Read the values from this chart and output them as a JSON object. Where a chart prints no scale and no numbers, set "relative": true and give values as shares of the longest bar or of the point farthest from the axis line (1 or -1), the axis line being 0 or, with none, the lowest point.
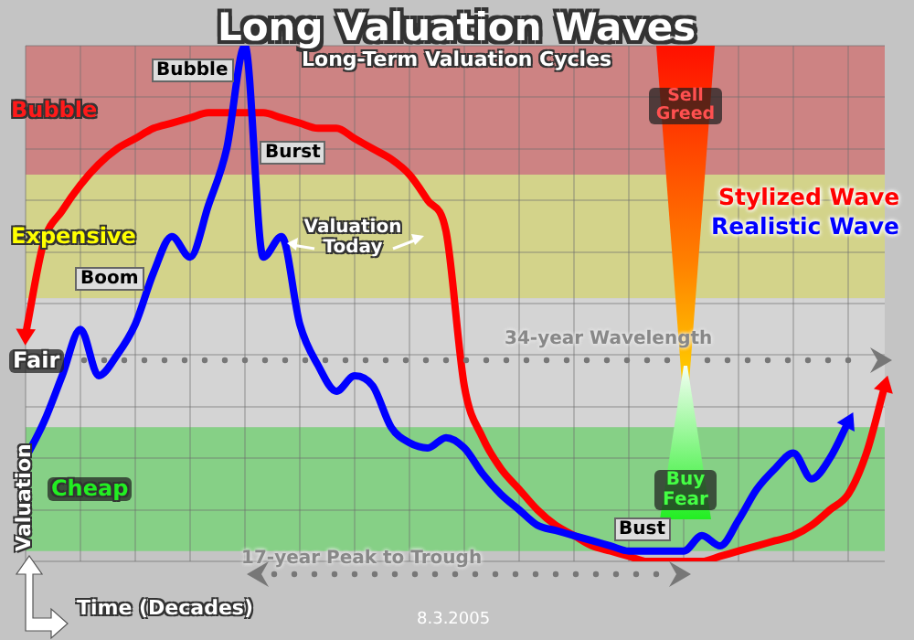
{
  "chart_data": {
    "type": "line",
    "title": "Long Valuation Waves",
    "subtitle": "Long-Term Valuation Cycles",
    "xlabel": "Time (Decades)",
    "ylabel": "Valuation",
    "relative": true,
    "grid": true,
    "legend": "right",
    "categories": [
      null,
      null,
      null,
      null,
      null,
      null,
      null,
      null,
      null,
      null,
      null,
      null,
      null,
      null,
      null,
      null,
      null,
      null,
      null,
      null,
      null,
      null,
      null,
      null,
      null,
      null,
      null,
      null,
      null,
      null,
      null,
      null,
      null,
      null,
      null,
      null,
      null,
      null,
      null,
      null,
      null,
      null,
      null,
      null,
      null,
      null,
      null,
      null
    ],
    "series": [
      {
        "name": "Stylized Wave",
        "color": "#ff0000",
        "values": [
          0.44,
          0.62,
          0.68,
          0.73,
          0.77,
          0.8,
          0.82,
          0.84,
          0.85,
          0.86,
          0.87,
          0.87,
          0.87,
          0.87,
          0.86,
          0.85,
          0.84,
          0.84,
          0.82,
          0.8,
          0.78,
          0.75,
          0.7,
          0.64,
          0.34,
          0.24,
          0.18,
          0.14,
          0.1,
          0.07,
          0.05,
          0.03,
          0.02,
          0.01,
          0.0,
          0.0,
          0.0,
          0.0,
          0.01,
          0.02,
          0.03,
          0.04,
          0.05,
          0.07,
          0.1,
          0.13,
          0.21,
          0.34
        ]
      },
      {
        "name": "Realistic Wave",
        "color": "#0000ff",
        "values": [
          0.2,
          0.27,
          0.36,
          0.45,
          0.36,
          0.4,
          0.46,
          0.56,
          0.63,
          0.59,
          0.69,
          0.8,
          1.0,
          0.59,
          0.63,
          0.46,
          0.38,
          0.33,
          0.36,
          0.34,
          0.26,
          0.23,
          0.22,
          0.24,
          0.22,
          0.17,
          0.13,
          0.1,
          0.07,
          0.06,
          0.05,
          0.04,
          0.03,
          0.02,
          0.02,
          0.02,
          0.02,
          0.05,
          0.03,
          0.08,
          0.14,
          0.18,
          0.21,
          0.16,
          0.2,
          0.27,
          null,
          null
        ]
      }
    ],
    "bands": [
      {
        "axis": "y",
        "from": 0.75,
        "to": 1.0,
        "label": "Bubble",
        "color": "#cd8383"
      },
      {
        "axis": "y",
        "from": 0.51,
        "to": 0.75,
        "label": "Expensive",
        "color": "#d3d38a"
      },
      {
        "axis": "y",
        "from": 0.26,
        "to": 0.51,
        "color": "#d4d4d4"
      },
      {
        "axis": "y",
        "from": 0.02,
        "to": 0.26,
        "label": "Cheap",
        "color": "#86d086"
      }
    ],
    "ref_lines": [
      {
        "axis": "y",
        "value": 0.39,
        "label": "Fair",
        "color": "#777777",
        "line_style": "dotted"
      }
    ],
    "annotations": [
      "Bubble",
      "Burst",
      "Boom",
      "Valuation Today",
      "Sell Greed",
      "Buy Fear",
      "Bust",
      "34-year Wavelength",
      "17-year Peak to Trough",
      "8.3.2005"
    ]
  }
}
